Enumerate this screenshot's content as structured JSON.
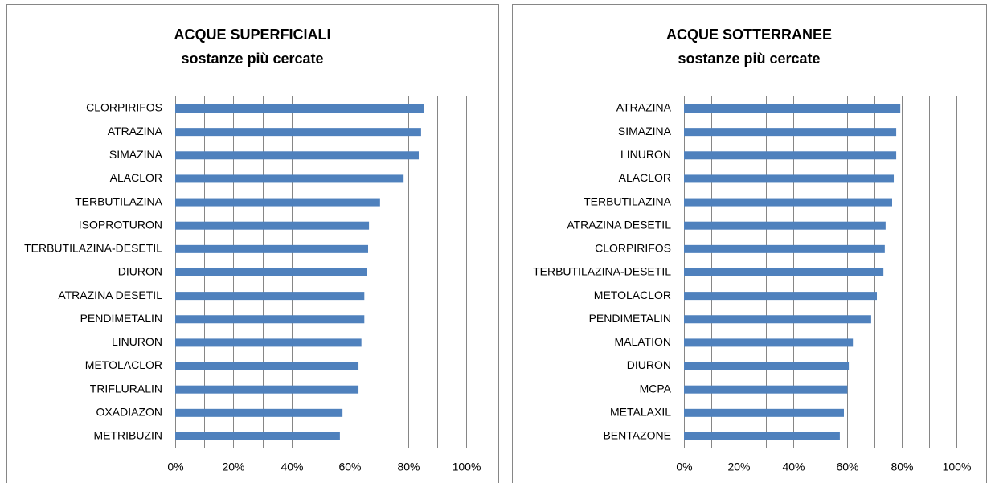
{
  "chart_data": [
    {
      "type": "barh",
      "title": "ACQUE SUPERFICIALI",
      "subtitle": "sostanze più cercate",
      "color": "#4f81bd",
      "grid": true,
      "categories": [
        "CLORPIRIFOS",
        "ATRAZINA",
        "SIMAZINA",
        "ALACLOR",
        "TERBUTILAZINA",
        "ISOPROTURON",
        "TERBUTILAZINA-DESETIL",
        "DIURON",
        "ATRAZINA DESETIL",
        "PENDIMETALIN",
        "LINURON",
        "METOLACLOR",
        "TRIFLURALIN",
        "OXADIAZON",
        "METRIBUZIN"
      ],
      "values": [
        85.6,
        84.5,
        83.7,
        78.5,
        70.4,
        66.6,
        66.3,
        66,
        65,
        65,
        64,
        63,
        63,
        57.5,
        56.6
      ],
      "xlim": [
        0,
        100
      ],
      "xticks": [
        {
          "value": 0,
          "label": "0%"
        },
        {
          "value": 20,
          "label": "20%"
        },
        {
          "value": 40,
          "label": "40%"
        },
        {
          "value": 60,
          "label": "60%"
        },
        {
          "value": 80,
          "label": "80%"
        },
        {
          "value": 100,
          "label": "100%"
        }
      ],
      "minor_xticks": [
        10,
        30,
        50,
        70,
        90
      ]
    },
    {
      "type": "barh",
      "title": "ACQUE SOTTERRANEE",
      "subtitle": "sostanze più cercate",
      "color": "#4f81bd",
      "grid": true,
      "categories": [
        "ATRAZINA",
        "SIMAZINA",
        "LINURON",
        "ALACLOR",
        "TERBUTILAZINA",
        "ATRAZINA DESETIL",
        "CLORPIRIFOS",
        "TERBUTILAZINA-DESETIL",
        "METOLACLOR",
        "PENDIMETALIN",
        "MALATION",
        "DIURON",
        "MCPA",
        "METALAXIL",
        "BENTAZONE"
      ],
      "values": [
        79.4,
        77.9,
        77.9,
        77,
        76.4,
        74,
        73.7,
        73.2,
        70.8,
        68.7,
        62,
        60.5,
        60,
        58.7,
        57.2
      ],
      "xlim": [
        0,
        100
      ],
      "xticks": [
        {
          "value": 0,
          "label": "0%"
        },
        {
          "value": 20,
          "label": "20%"
        },
        {
          "value": 40,
          "label": "40%"
        },
        {
          "value": 60,
          "label": "60%"
        },
        {
          "value": 80,
          "label": "80%"
        },
        {
          "value": 100,
          "label": "100%"
        }
      ],
      "minor_xticks": [
        10,
        30,
        50,
        70,
        90
      ]
    }
  ]
}
